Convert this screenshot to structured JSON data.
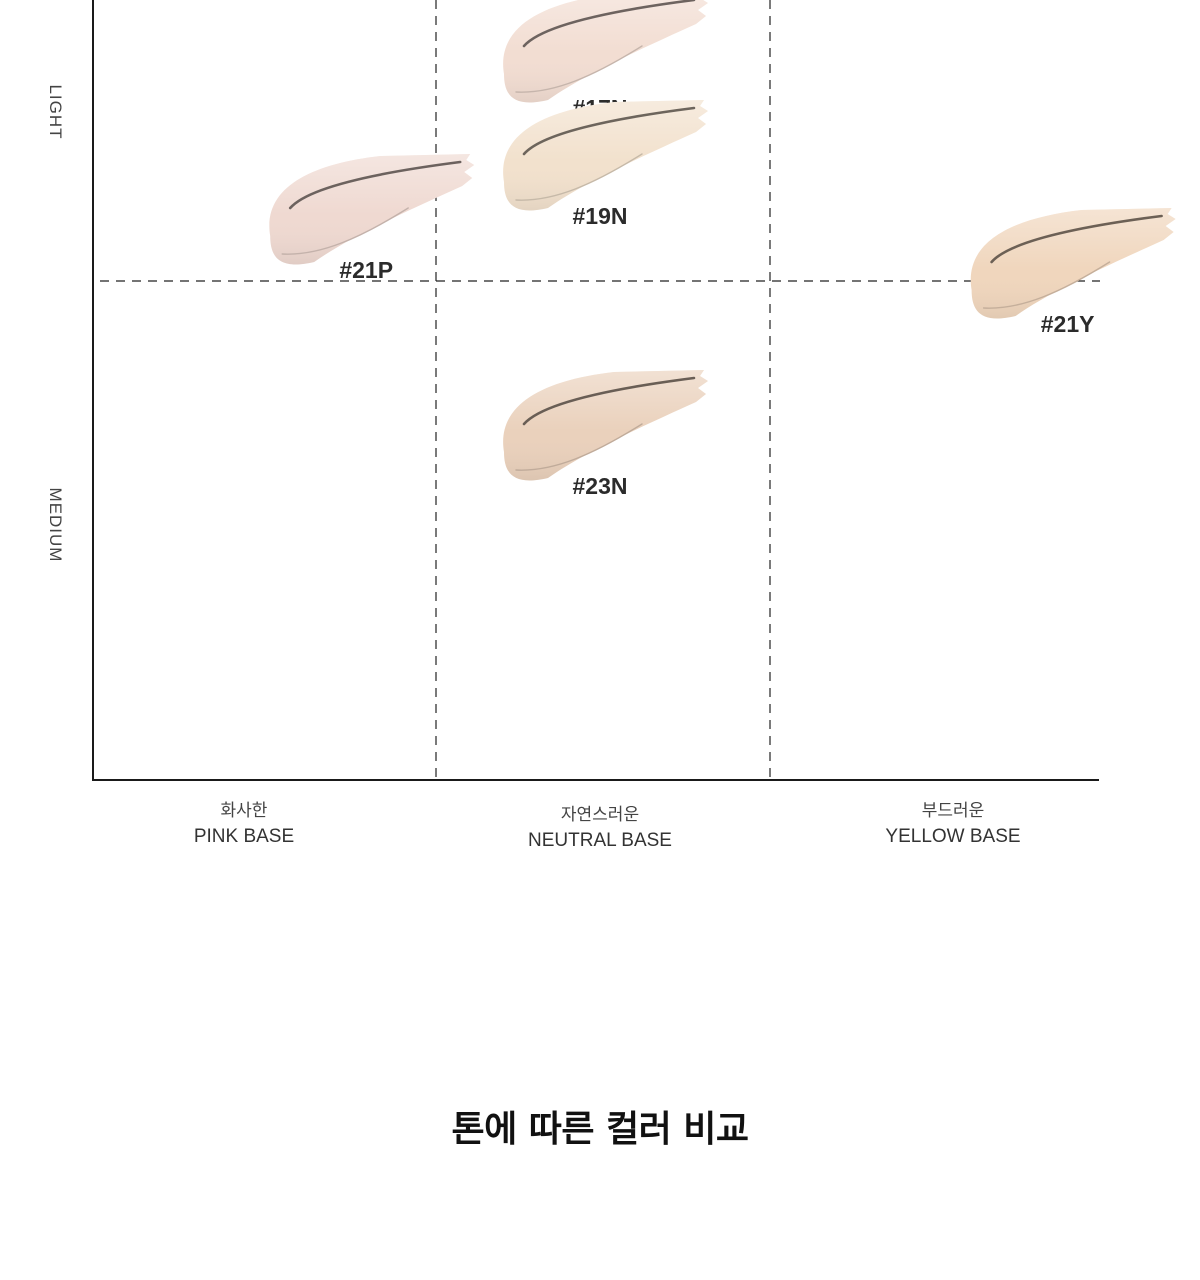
{
  "chart_data": {
    "type": "scatter",
    "title": "",
    "x_axis": {
      "categories": [
        {
          "ko": "화사한",
          "en": "PINK BASE"
        },
        {
          "ko": "자연스러운",
          "en": "NEUTRAL BASE"
        },
        {
          "ko": "부드러운",
          "en": "YELLOW BASE"
        }
      ]
    },
    "y_axis": {
      "labels": [
        "LIGHT",
        "MEDIUM"
      ]
    },
    "grid": "dashed",
    "points": [
      {
        "label": "#17N",
        "x": 1.0,
        "y": 0.2,
        "color": "#f2ddd2"
      },
      {
        "label": "#19N",
        "x": 1.0,
        "y": 0.6,
        "color": "#f2e1cd"
      },
      {
        "label": "#21P",
        "x": 0.3,
        "y": 0.8,
        "color": "#efd9d1"
      },
      {
        "label": "#21Y",
        "x": 2.4,
        "y": 1.0,
        "color": "#f0d6bd"
      },
      {
        "label": "#23N",
        "x": 1.0,
        "y": 1.6,
        "color": "#ead1bc"
      }
    ]
  },
  "page": {
    "title": "톤에 따른 컬러 비교"
  }
}
